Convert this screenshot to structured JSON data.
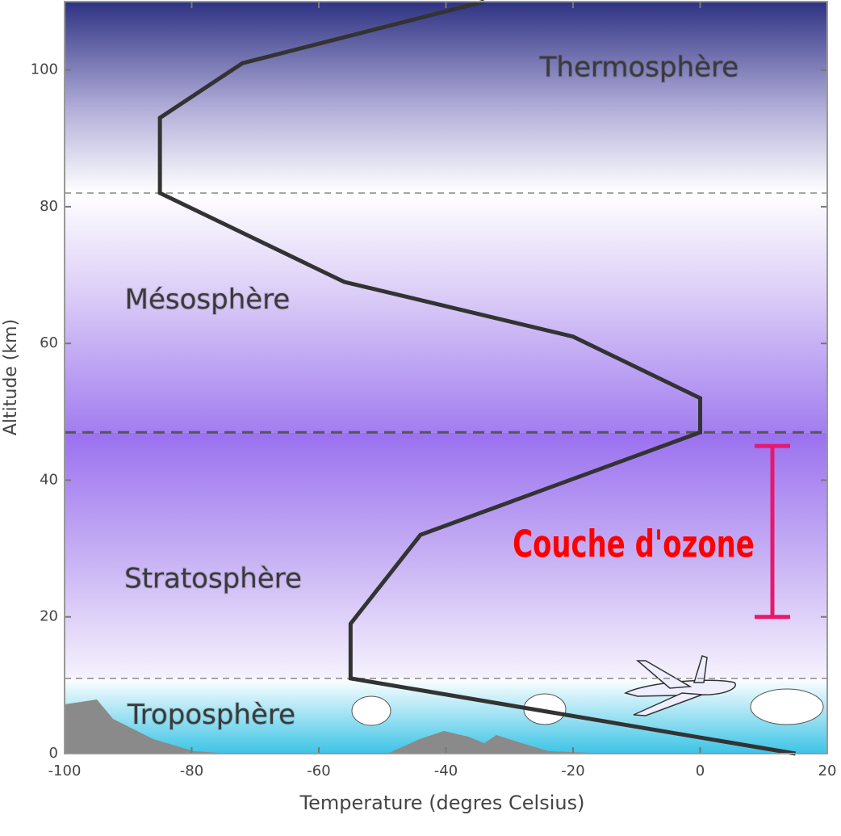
{
  "chart_data": {
    "type": "line",
    "x_label": "Temperature (degres Celsius)",
    "y_label": "Altitude (km)",
    "x": [
      15,
      -55,
      -55,
      -44,
      0,
      0,
      -20,
      -56,
      -85,
      -85,
      -72,
      -34
    ],
    "series": [
      {
        "color": "#333333",
        "values": [
          0,
          11,
          19,
          32,
          47,
          52,
          61,
          69,
          82,
          93,
          101,
          110
        ]
      }
    ],
    "xlim": [
      -100,
      20
    ],
    "ylim": [
      0,
      110
    ],
    "xticks": [
      -100,
      -80,
      -60,
      -40,
      -20,
      0,
      20
    ],
    "yticks": [
      0,
      20,
      40,
      60,
      80,
      100
    ],
    "grid": false,
    "layer_boundaries": [
      11,
      47,
      82
    ],
    "layers": [
      "Troposphère",
      "Stratosphère",
      "Mésosphère",
      "Thermosphère"
    ],
    "annotation": "Couche d'ozone",
    "ozone_range": [
      20,
      45
    ],
    "ozone_color": "#e8186e"
  }
}
